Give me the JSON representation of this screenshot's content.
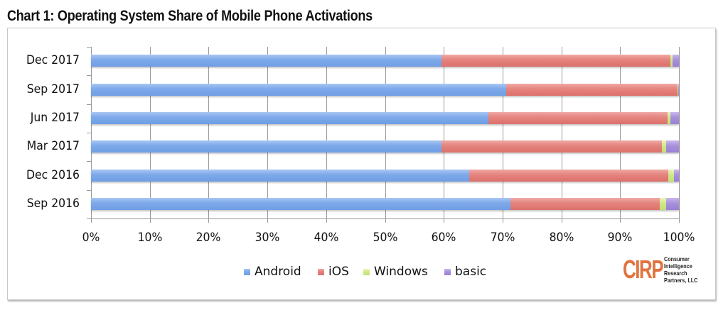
{
  "title": "Chart 1: Operating System Share of Mobile Phone Activations",
  "colors": {
    "android": "#7faaea",
    "ios": "#e58580",
    "windows": "#d0e88a",
    "basic": "#a890dc",
    "logo": "#e0743f"
  },
  "legend": [
    {
      "label": "Android",
      "key": "android"
    },
    {
      "label": "iOS",
      "key": "ios"
    },
    {
      "label": "Windows",
      "key": "windows"
    },
    {
      "label": "basic",
      "key": "basic"
    }
  ],
  "logo": {
    "mark": "CIRP",
    "lines": [
      "Consumer",
      "Intelligence",
      "Research",
      "Partners, LLC"
    ]
  },
  "chart_data": {
    "type": "bar",
    "orientation": "horizontal",
    "stacked": "percent",
    "title": "Chart 1: Operating System Share of Mobile Phone Activations",
    "xlabel": "",
    "ylabel": "",
    "categories": [
      "Dec 2017",
      "Sep 2017",
      "Jun 2017",
      "Mar 2017",
      "Dec 2016",
      "Sep 2016"
    ],
    "series": [
      {
        "name": "Android",
        "values": [
          59.6,
          70.6,
          67.6,
          59.6,
          64.3,
          71.3
        ]
      },
      {
        "name": "iOS",
        "values": [
          38.9,
          29.1,
          30.5,
          37.5,
          33.9,
          25.4
        ]
      },
      {
        "name": "Windows",
        "values": [
          0.4,
          0.2,
          0.4,
          0.7,
          0.9,
          1.1
        ]
      },
      {
        "name": "basic",
        "values": [
          1.1,
          0.1,
          1.5,
          2.2,
          0.9,
          2.2
        ]
      }
    ],
    "xlim": [
      0,
      100
    ],
    "xticks": [
      "0%",
      "10%",
      "20%",
      "30%",
      "40%",
      "50%",
      "60%",
      "70%",
      "80%",
      "90%",
      "100%"
    ],
    "grid": "vertical",
    "legend_position": "bottom"
  }
}
